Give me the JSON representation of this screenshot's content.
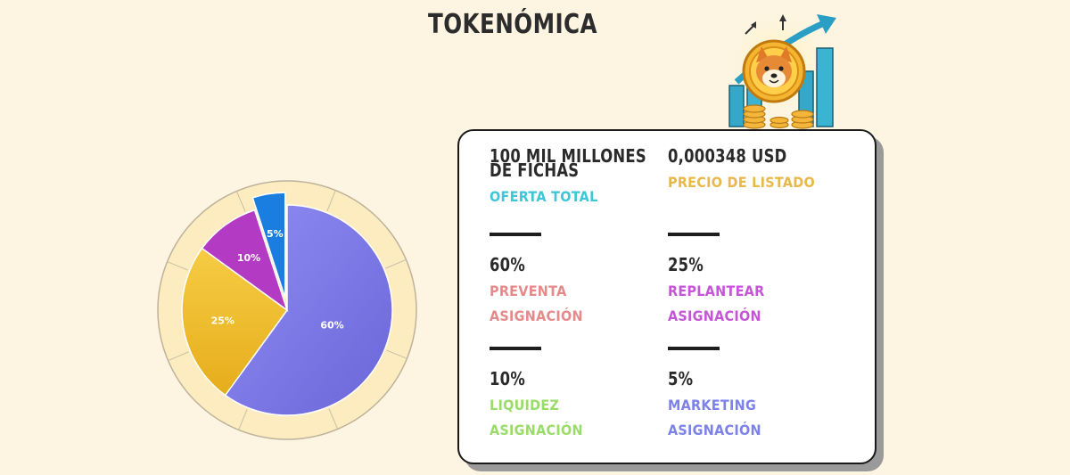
{
  "page": {
    "title": "TOKENÓMICA"
  },
  "chart_data": {
    "type": "pie",
    "slices": [
      {
        "label": "60%",
        "value": 60,
        "color": "#7b78e8"
      },
      {
        "label": "25%",
        "value": 25,
        "color": "#f2c02a"
      },
      {
        "label": "10%",
        "value": 10,
        "color": "#b33bc4"
      },
      {
        "label": "5%",
        "value": 5,
        "color": "#1a7de0"
      }
    ],
    "ring_color": "#fdecc0",
    "exploded_slice": "5%"
  },
  "card": {
    "supply": {
      "value": "100 MIL MILLONES DE FICHAS",
      "label": "OFERTA TOTAL",
      "color": "#3ec6d8"
    },
    "price": {
      "value": "0,000348 USD",
      "label": "PRECIO DE LISTADO",
      "color": "#e8b94a"
    },
    "presale": {
      "value": "60%",
      "label1": "PREVENTA",
      "label2": "ASIGNACIÓN",
      "color": "#e58a8a"
    },
    "replant": {
      "value": "25%",
      "label1": "REPLANTEAR",
      "label2": "ASIGNACIÓN",
      "color": "#c455d6"
    },
    "liquidity": {
      "value": "10%",
      "label1": "LIQUIDEZ",
      "label2": "ASIGNACIÓN",
      "color": "#9adc6a"
    },
    "marketing": {
      "value": "5%",
      "label1": "MARKETING",
      "label2": "ASIGNACIÓN",
      "color": "#7c82e8"
    }
  },
  "colors": {
    "background": "#fdf5e2",
    "text": "#2a2a2a"
  },
  "icons": {
    "mascot": "shiba-coin-growth-chart-illustration"
  }
}
